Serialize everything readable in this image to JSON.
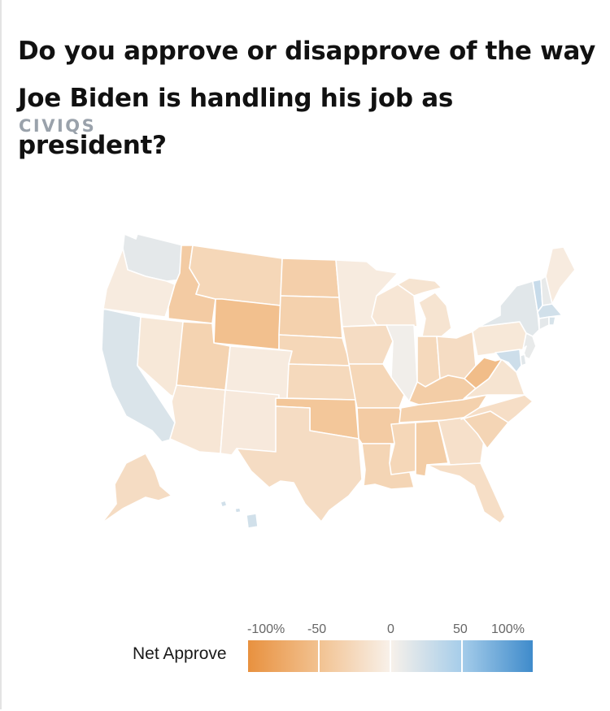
{
  "title": "Do you approve or disapprove of the way Joe Biden is handling his job as president?",
  "brand": "CIVIQS",
  "legend": {
    "title": "Net Approve",
    "ticks": [
      "-100%",
      "-50",
      "0",
      "50",
      "100%"
    ],
    "colors": {
      "neg_strong": "#e8913f",
      "neg_mid": "#f2c291",
      "neutral": "#f8f1ea",
      "pos_mid": "#a6cdea",
      "pos_strong": "#3f8bcb"
    }
  },
  "map_data": {
    "metric": "Net Approve",
    "scale": [
      -100,
      100
    ],
    "states": {
      "WA": 12,
      "OR": -6,
      "CA": 18,
      "NV": -10,
      "ID": -40,
      "MT": -28,
      "WY": -52,
      "UT": -32,
      "AZ": -12,
      "NM": -8,
      "CO": -6,
      "ND": -36,
      "SD": -34,
      "NE": -28,
      "KS": -26,
      "OK": -45,
      "TX": -22,
      "MN": -6,
      "IA": -22,
      "MO": -28,
      "AR": -40,
      "LA": -30,
      "WI": -12,
      "IL": 4,
      "MI": -14,
      "IN": -26,
      "OH": -22,
      "KY": -38,
      "TN": -34,
      "MS": -28,
      "AL": -38,
      "GA": -18,
      "FL": -20,
      "SC": -30,
      "NC": -20,
      "VA": -14,
      "WV": -55,
      "PA": -10,
      "NY": 14,
      "VT": 30,
      "NH": 10,
      "ME": -6,
      "MA": 24,
      "RI": 20,
      "CT": 12,
      "NJ": 10,
      "DE": 14,
      "MD": 26,
      "AK": -22,
      "HI": 24
    }
  }
}
